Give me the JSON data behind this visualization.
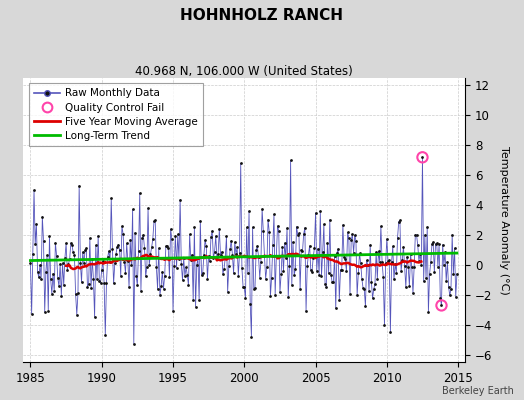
{
  "title": "HOHNHOLZ RANCH",
  "subtitle": "40.968 N, 106.000 W (United States)",
  "credit": "Berkeley Earth",
  "ylabel": "Temperature Anomaly (°C)",
  "xlim": [
    1984.5,
    2015.5
  ],
  "ylim": [
    -6.5,
    12.5
  ],
  "yticks": [
    -6,
    -4,
    -2,
    0,
    2,
    4,
    6,
    8,
    10,
    12
  ],
  "xticks": [
    1985,
    1990,
    1995,
    2000,
    2005,
    2010,
    2015
  ],
  "bg_color": "#d8d8d8",
  "plot_bg_color": "#ffffff",
  "line_color": "#5555bb",
  "dot_color": "#111111",
  "ma_color": "#dd0000",
  "trend_color": "#00bb00",
  "qc_color": "#ff44aa",
  "seed": 17,
  "n_months": 360,
  "start_year": 1985.0,
  "figsize": [
    5.24,
    4.0
  ],
  "dpi": 100
}
